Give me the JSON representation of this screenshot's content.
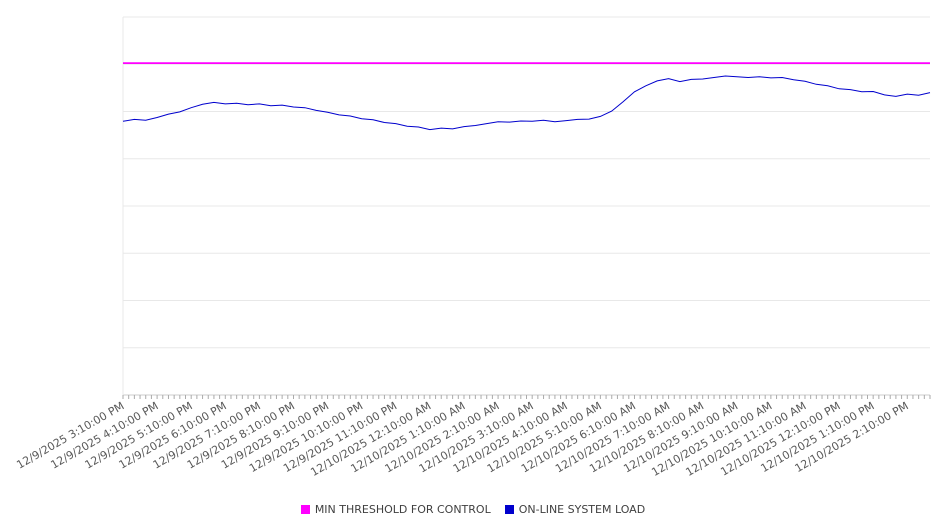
{
  "chart_data": {
    "type": "line",
    "title": "",
    "legend_position": "bottom",
    "x_axis": {
      "labels": [
        "12/9/2025 3:10:00 PM",
        "12/9/2025 4:10:00 PM",
        "12/9/2025 5:10:00 PM",
        "12/9/2025 6:10:00 PM",
        "12/9/2025 7:10:00 PM",
        "12/9/2025 8:10:00 PM",
        "12/9/2025 9:10:00 PM",
        "12/9/2025 10:10:00 PM",
        "12/9/2025 11:10:00 PM",
        "12/10/2025 12:10:00 AM",
        "12/10/2025 1:10:00 AM",
        "12/10/2025 2:10:00 AM",
        "12/10/2025 3:10:00 AM",
        "12/10/2025 4:10:00 AM",
        "12/10/2025 5:10:00 AM",
        "12/10/2025 6:10:00 AM",
        "12/10/2025 7:10:00 AM",
        "12/10/2025 8:10:00 AM",
        "12/10/2025 9:10:00 AM",
        "12/10/2025 10:10:00 AM",
        "12/10/2025 11:10:00 AM",
        "12/10/2025 12:10:00 PM",
        "12/10/2025 1:10:00 PM",
        "12/10/2025 2:10:00 PM"
      ],
      "label_rotation_deg": -30,
      "minor_ticks_per_hour": 6,
      "span_hours": 23.667,
      "tick_labels_visible": true
    },
    "y_axis": {
      "min": 0,
      "max": 100,
      "gridline_divisions": 8,
      "tick_labels_visible": false,
      "grid": true
    },
    "series": [
      {
        "name": "MIN THRESHOLD FOR CONTROL",
        "kind": "constant",
        "color": "#ff00ff",
        "value": 87.8
      },
      {
        "name": "ON-LINE SYSTEM LOAD",
        "kind": "points",
        "color": "#0000cd",
        "sample_interval_minutes": 20,
        "values": [
          72.4,
          72.9,
          72.7,
          73.4,
          74.3,
          74.9,
          76.0,
          76.9,
          77.4,
          77.0,
          77.2,
          76.8,
          77.0,
          76.5,
          76.7,
          76.2,
          76.0,
          75.3,
          74.8,
          74.1,
          73.8,
          73.1,
          72.8,
          72.1,
          71.8,
          71.1,
          70.9,
          70.2,
          70.6,
          70.4,
          71.0,
          71.3,
          71.8,
          72.3,
          72.2,
          72.5,
          72.4,
          72.7,
          72.3,
          72.6,
          72.9,
          73.0,
          73.7,
          75.1,
          77.6,
          80.2,
          81.8,
          83.1,
          83.7,
          82.9,
          83.5,
          83.6,
          84.0,
          84.4,
          84.2,
          84.0,
          84.2,
          83.9,
          84.0,
          83.4,
          83.0,
          82.2,
          81.8,
          81.0,
          80.8,
          80.2,
          80.3,
          79.4,
          79.0,
          79.6,
          79.3,
          80.0
        ]
      }
    ],
    "style": {
      "gridline_color": "#e8e8e8",
      "axis_color": "#cccccc",
      "tick_color": "#aaaaaa",
      "label_color": "#595959",
      "background_color": "#ffffff"
    }
  },
  "legend": {
    "items": [
      {
        "label": "MIN THRESHOLD FOR CONTROL"
      },
      {
        "label": "ON-LINE SYSTEM LOAD"
      }
    ]
  }
}
